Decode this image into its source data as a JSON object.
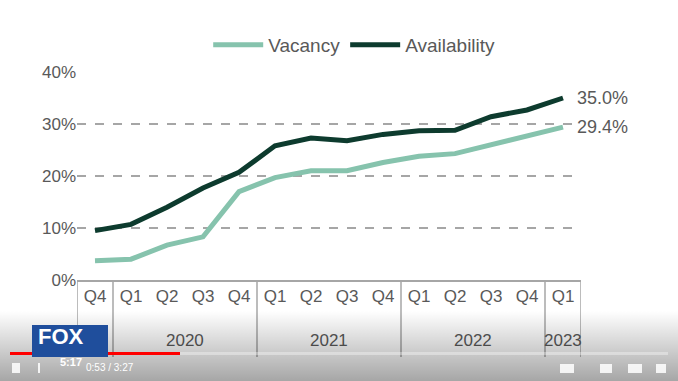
{
  "chart_data": {
    "type": "line",
    "categories": [
      "Q4",
      "Q1",
      "Q2",
      "Q3",
      "Q4",
      "Q1",
      "Q2",
      "Q3",
      "Q4",
      "Q1",
      "Q2",
      "Q3",
      "Q4",
      "Q1"
    ],
    "years": [
      null,
      "2020",
      "2020",
      "2020",
      "2020",
      "2021",
      "2021",
      "2021",
      "2021",
      "2022",
      "2022",
      "2022",
      "2022",
      "2023"
    ],
    "series": [
      {
        "name": "Vacancy",
        "color": "#86c3ad",
        "values": [
          3.7,
          4.0,
          6.7,
          8.3,
          17.0,
          19.7,
          21.0,
          21.0,
          22.6,
          23.8,
          24.3,
          26.0,
          27.7,
          29.4
        ],
        "value_labels": [
          null,
          null,
          null,
          null,
          null,
          null,
          null,
          null,
          null,
          null,
          null,
          null,
          null,
          "29.4%"
        ]
      },
      {
        "name": "Availability",
        "color": "#0d3b2e",
        "values": [
          9.5,
          10.7,
          14.0,
          17.7,
          20.7,
          25.8,
          27.3,
          26.8,
          28.0,
          28.7,
          28.8,
          31.4,
          32.7,
          35.0
        ],
        "value_labels": [
          null,
          null,
          null,
          null,
          null,
          null,
          null,
          null,
          null,
          null,
          null,
          null,
          null,
          "35.0%"
        ]
      }
    ],
    "ylim": [
      0,
      40
    ],
    "yticks": [
      {
        "value": 0,
        "label": "0%"
      },
      {
        "value": 10,
        "label": "10%"
      },
      {
        "value": 20,
        "label": "20%"
      },
      {
        "value": 30,
        "label": "30%"
      },
      {
        "value": 40,
        "label": "40%"
      }
    ],
    "grid": true,
    "legend": "top"
  },
  "player": {
    "channel": "FOX",
    "clip_time": "5:17",
    "time": "0:53 / 3:27"
  }
}
